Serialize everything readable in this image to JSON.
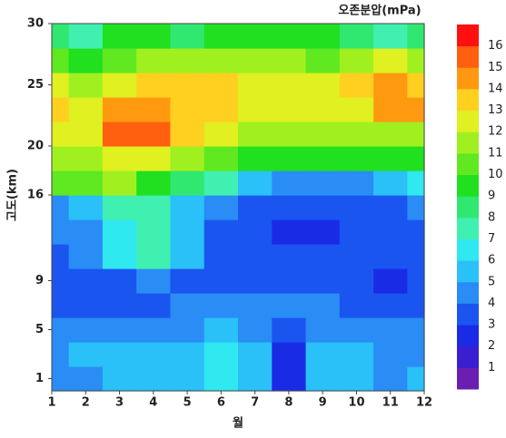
{
  "chart_data": {
    "type": "contour",
    "title": "오존분압(mPa)",
    "xlabel": "월",
    "ylabel": "고도(km)",
    "x": [
      1,
      2,
      3,
      4,
      5,
      6,
      7,
      8,
      9,
      10,
      11,
      12
    ],
    "y": [
      1,
      3,
      5,
      7,
      9,
      11,
      13,
      15,
      17,
      19,
      21,
      23,
      25,
      27,
      29
    ],
    "z": [
      [
        4,
        4,
        5,
        5,
        5,
        6,
        5,
        2,
        5,
        5,
        4,
        5
      ],
      [
        4,
        5,
        5,
        5,
        5,
        6,
        5,
        2,
        5,
        5,
        4,
        4
      ],
      [
        4,
        4,
        4,
        4,
        4,
        5,
        4,
        3,
        4,
        4,
        4,
        4
      ],
      [
        3,
        3,
        3,
        3,
        4,
        4,
        4,
        4,
        4,
        3,
        3,
        3
      ],
      [
        3,
        3,
        3,
        4,
        3,
        3,
        3,
        3,
        3,
        3,
        2,
        3
      ],
      [
        3,
        4,
        6,
        7,
        5,
        3,
        3,
        3,
        3,
        3,
        3,
        3
      ],
      [
        4,
        4,
        6,
        7,
        5,
        3,
        3,
        2,
        2,
        3,
        3,
        3
      ],
      [
        4,
        5,
        7,
        7,
        5,
        4,
        3,
        3,
        3,
        3,
        3,
        4
      ],
      [
        10,
        10,
        11,
        9,
        8,
        7,
        5,
        4,
        4,
        4,
        5,
        6
      ],
      [
        11,
        11,
        12,
        12,
        11,
        10,
        9,
        9,
        9,
        9,
        9,
        9
      ],
      [
        12,
        12,
        15,
        15,
        13,
        12,
        11,
        11,
        11,
        11,
        11,
        11
      ],
      [
        13,
        12,
        14,
        14,
        13,
        13,
        12,
        12,
        12,
        12,
        14,
        14
      ],
      [
        12,
        11,
        12,
        13,
        13,
        13,
        12,
        12,
        12,
        13,
        14,
        13
      ],
      [
        10,
        9,
        10,
        11,
        11,
        11,
        11,
        11,
        10,
        11,
        12,
        11
      ],
      [
        8,
        7,
        9,
        9,
        8,
        9,
        9,
        9,
        9,
        8,
        7,
        8
      ]
    ],
    "levels": [
      1,
      2,
      3,
      4,
      5,
      6,
      7,
      8,
      9,
      10,
      11,
      12,
      13,
      14,
      15,
      16
    ],
    "colors": [
      "#6a1fb0",
      "#3a1fd0",
      "#1a2be6",
      "#1a55f0",
      "#2a8cf5",
      "#2ac0f8",
      "#30e8f0",
      "#40f0b0",
      "#30e870",
      "#20e020",
      "#60e820",
      "#a0f020",
      "#e0f020",
      "#ffd020",
      "#ff9a10",
      "#ff6010",
      "#ff1010"
    ],
    "xlim": [
      1,
      12
    ],
    "ylim": [
      0,
      30
    ],
    "xticks": [
      1,
      2,
      3,
      4,
      5,
      6,
      7,
      8,
      9,
      10,
      11,
      12
    ],
    "yticks": [
      1,
      5,
      9,
      16,
      20,
      25,
      30
    ]
  }
}
